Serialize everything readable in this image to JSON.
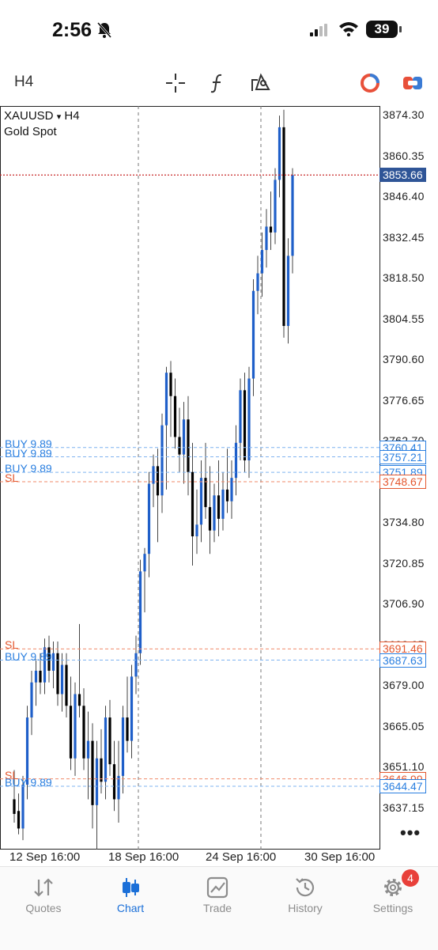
{
  "status_bar": {
    "time": "2:56",
    "battery": "39"
  },
  "toolbar": {
    "timeframe": "H4",
    "tools": [
      "crosshair-icon",
      "indicators-icon",
      "objects-icon",
      "trade-status-icon",
      "one-click-icon"
    ]
  },
  "chart": {
    "symbol": "XAUUSD",
    "symbol_arrow": "▾",
    "timeframe": "H4",
    "description": "Gold Spot",
    "current_price": "3853.66",
    "price_axis": [
      "3874.30",
      "3860.35",
      "3846.40",
      "3832.45",
      "3818.50",
      "3804.55",
      "3790.60",
      "3776.65",
      "3762.70",
      "3734.80",
      "3720.85",
      "3706.90",
      "3692.95",
      "3679.00",
      "3665.05",
      "3651.10",
      "3637.15"
    ],
    "time_axis": [
      "12 Sep 16:00",
      "18 Sep 16:00",
      "24 Sep 16:00",
      "30 Sep 16:00"
    ],
    "order_levels": [
      {
        "type": "BUY 9.89",
        "price": "3760.41"
      },
      {
        "type": "BUY 9.89",
        "price": "3757.21"
      },
      {
        "type": "BUY 9.89",
        "price": "3751.89"
      },
      {
        "type": "SL",
        "price": "3748.67"
      },
      {
        "type": "SL",
        "price": "3691.46"
      },
      {
        "type": "BUY 9.89",
        "price": "3687.63"
      },
      {
        "type": "SL",
        "price": "3646.99"
      },
      {
        "type": "BUY 9.89",
        "price": "3644.47"
      }
    ],
    "more": "•••"
  },
  "chart_data": {
    "type": "candlestick",
    "ylim": [
      3630,
      3880
    ],
    "candles": [
      [
        3640,
        3650,
        3632,
        3635
      ],
      [
        3636,
        3642,
        3628,
        3630
      ],
      [
        3630,
        3648,
        3626,
        3645
      ],
      [
        3645,
        3672,
        3640,
        3668
      ],
      [
        3668,
        3684,
        3662,
        3680
      ],
      [
        3680,
        3688,
        3672,
        3684
      ],
      [
        3684,
        3690,
        3676,
        3680
      ],
      [
        3680,
        3695,
        3676,
        3692
      ],
      [
        3692,
        3696,
        3680,
        3684
      ],
      [
        3684,
        3694,
        3678,
        3690
      ],
      [
        3690,
        3694,
        3672,
        3676
      ],
      [
        3676,
        3690,
        3670,
        3686
      ],
      [
        3686,
        3690,
        3668,
        3672
      ],
      [
        3672,
        3682,
        3650,
        3654
      ],
      [
        3654,
        3680,
        3648,
        3676
      ],
      [
        3676,
        3700,
        3668,
        3672
      ],
      [
        3672,
        3678,
        3650,
        3654
      ],
      [
        3654,
        3670,
        3640,
        3660
      ],
      [
        3660,
        3666,
        3630,
        3638
      ],
      [
        3638,
        3660,
        3620,
        3654
      ],
      [
        3654,
        3664,
        3642,
        3646
      ],
      [
        3646,
        3672,
        3640,
        3668
      ],
      [
        3668,
        3674,
        3648,
        3652
      ],
      [
        3652,
        3660,
        3636,
        3640
      ],
      [
        3640,
        3660,
        3632,
        3648
      ],
      [
        3648,
        3672,
        3642,
        3668
      ],
      [
        3668,
        3682,
        3656,
        3660
      ],
      [
        3660,
        3686,
        3654,
        3682
      ],
      [
        3682,
        3696,
        3676,
        3690
      ],
      [
        3690,
        3722,
        3686,
        3718
      ],
      [
        3718,
        3726,
        3704,
        3724
      ],
      [
        3724,
        3752,
        3716,
        3748
      ],
      [
        3748,
        3758,
        3740,
        3754
      ],
      [
        3754,
        3760,
        3728,
        3744
      ],
      [
        3744,
        3772,
        3738,
        3768
      ],
      [
        3768,
        3788,
        3746,
        3786
      ],
      [
        3786,
        3790,
        3764,
        3778
      ],
      [
        3778,
        3784,
        3760,
        3764
      ],
      [
        3764,
        3774,
        3752,
        3758
      ],
      [
        3758,
        3776,
        3748,
        3770
      ],
      [
        3770,
        3778,
        3744,
        3752
      ],
      [
        3752,
        3762,
        3720,
        3730
      ],
      [
        3730,
        3746,
        3724,
        3734
      ],
      [
        3734,
        3756,
        3728,
        3750
      ],
      [
        3750,
        3762,
        3736,
        3740
      ],
      [
        3740,
        3754,
        3724,
        3732
      ],
      [
        3732,
        3748,
        3728,
        3744
      ],
      [
        3744,
        3756,
        3730,
        3736
      ],
      [
        3736,
        3752,
        3732,
        3746
      ],
      [
        3746,
        3760,
        3738,
        3742
      ],
      [
        3742,
        3756,
        3736,
        3750
      ],
      [
        3750,
        3768,
        3744,
        3762
      ],
      [
        3762,
        3784,
        3756,
        3780
      ],
      [
        3780,
        3786,
        3752,
        3756
      ],
      [
        3756,
        3788,
        3750,
        3784
      ],
      [
        3784,
        3818,
        3778,
        3814
      ],
      [
        3814,
        3826,
        3806,
        3820
      ],
      [
        3820,
        3834,
        3812,
        3828
      ],
      [
        3828,
        3842,
        3822,
        3836
      ],
      [
        3836,
        3848,
        3828,
        3834
      ],
      [
        3834,
        3856,
        3830,
        3852
      ],
      [
        3852,
        3874,
        3846,
        3870
      ],
      [
        3870,
        3876,
        3798,
        3802
      ],
      [
        3802,
        3832,
        3796,
        3826
      ],
      [
        3826,
        3856,
        3820,
        3853.66
      ]
    ]
  }
}
